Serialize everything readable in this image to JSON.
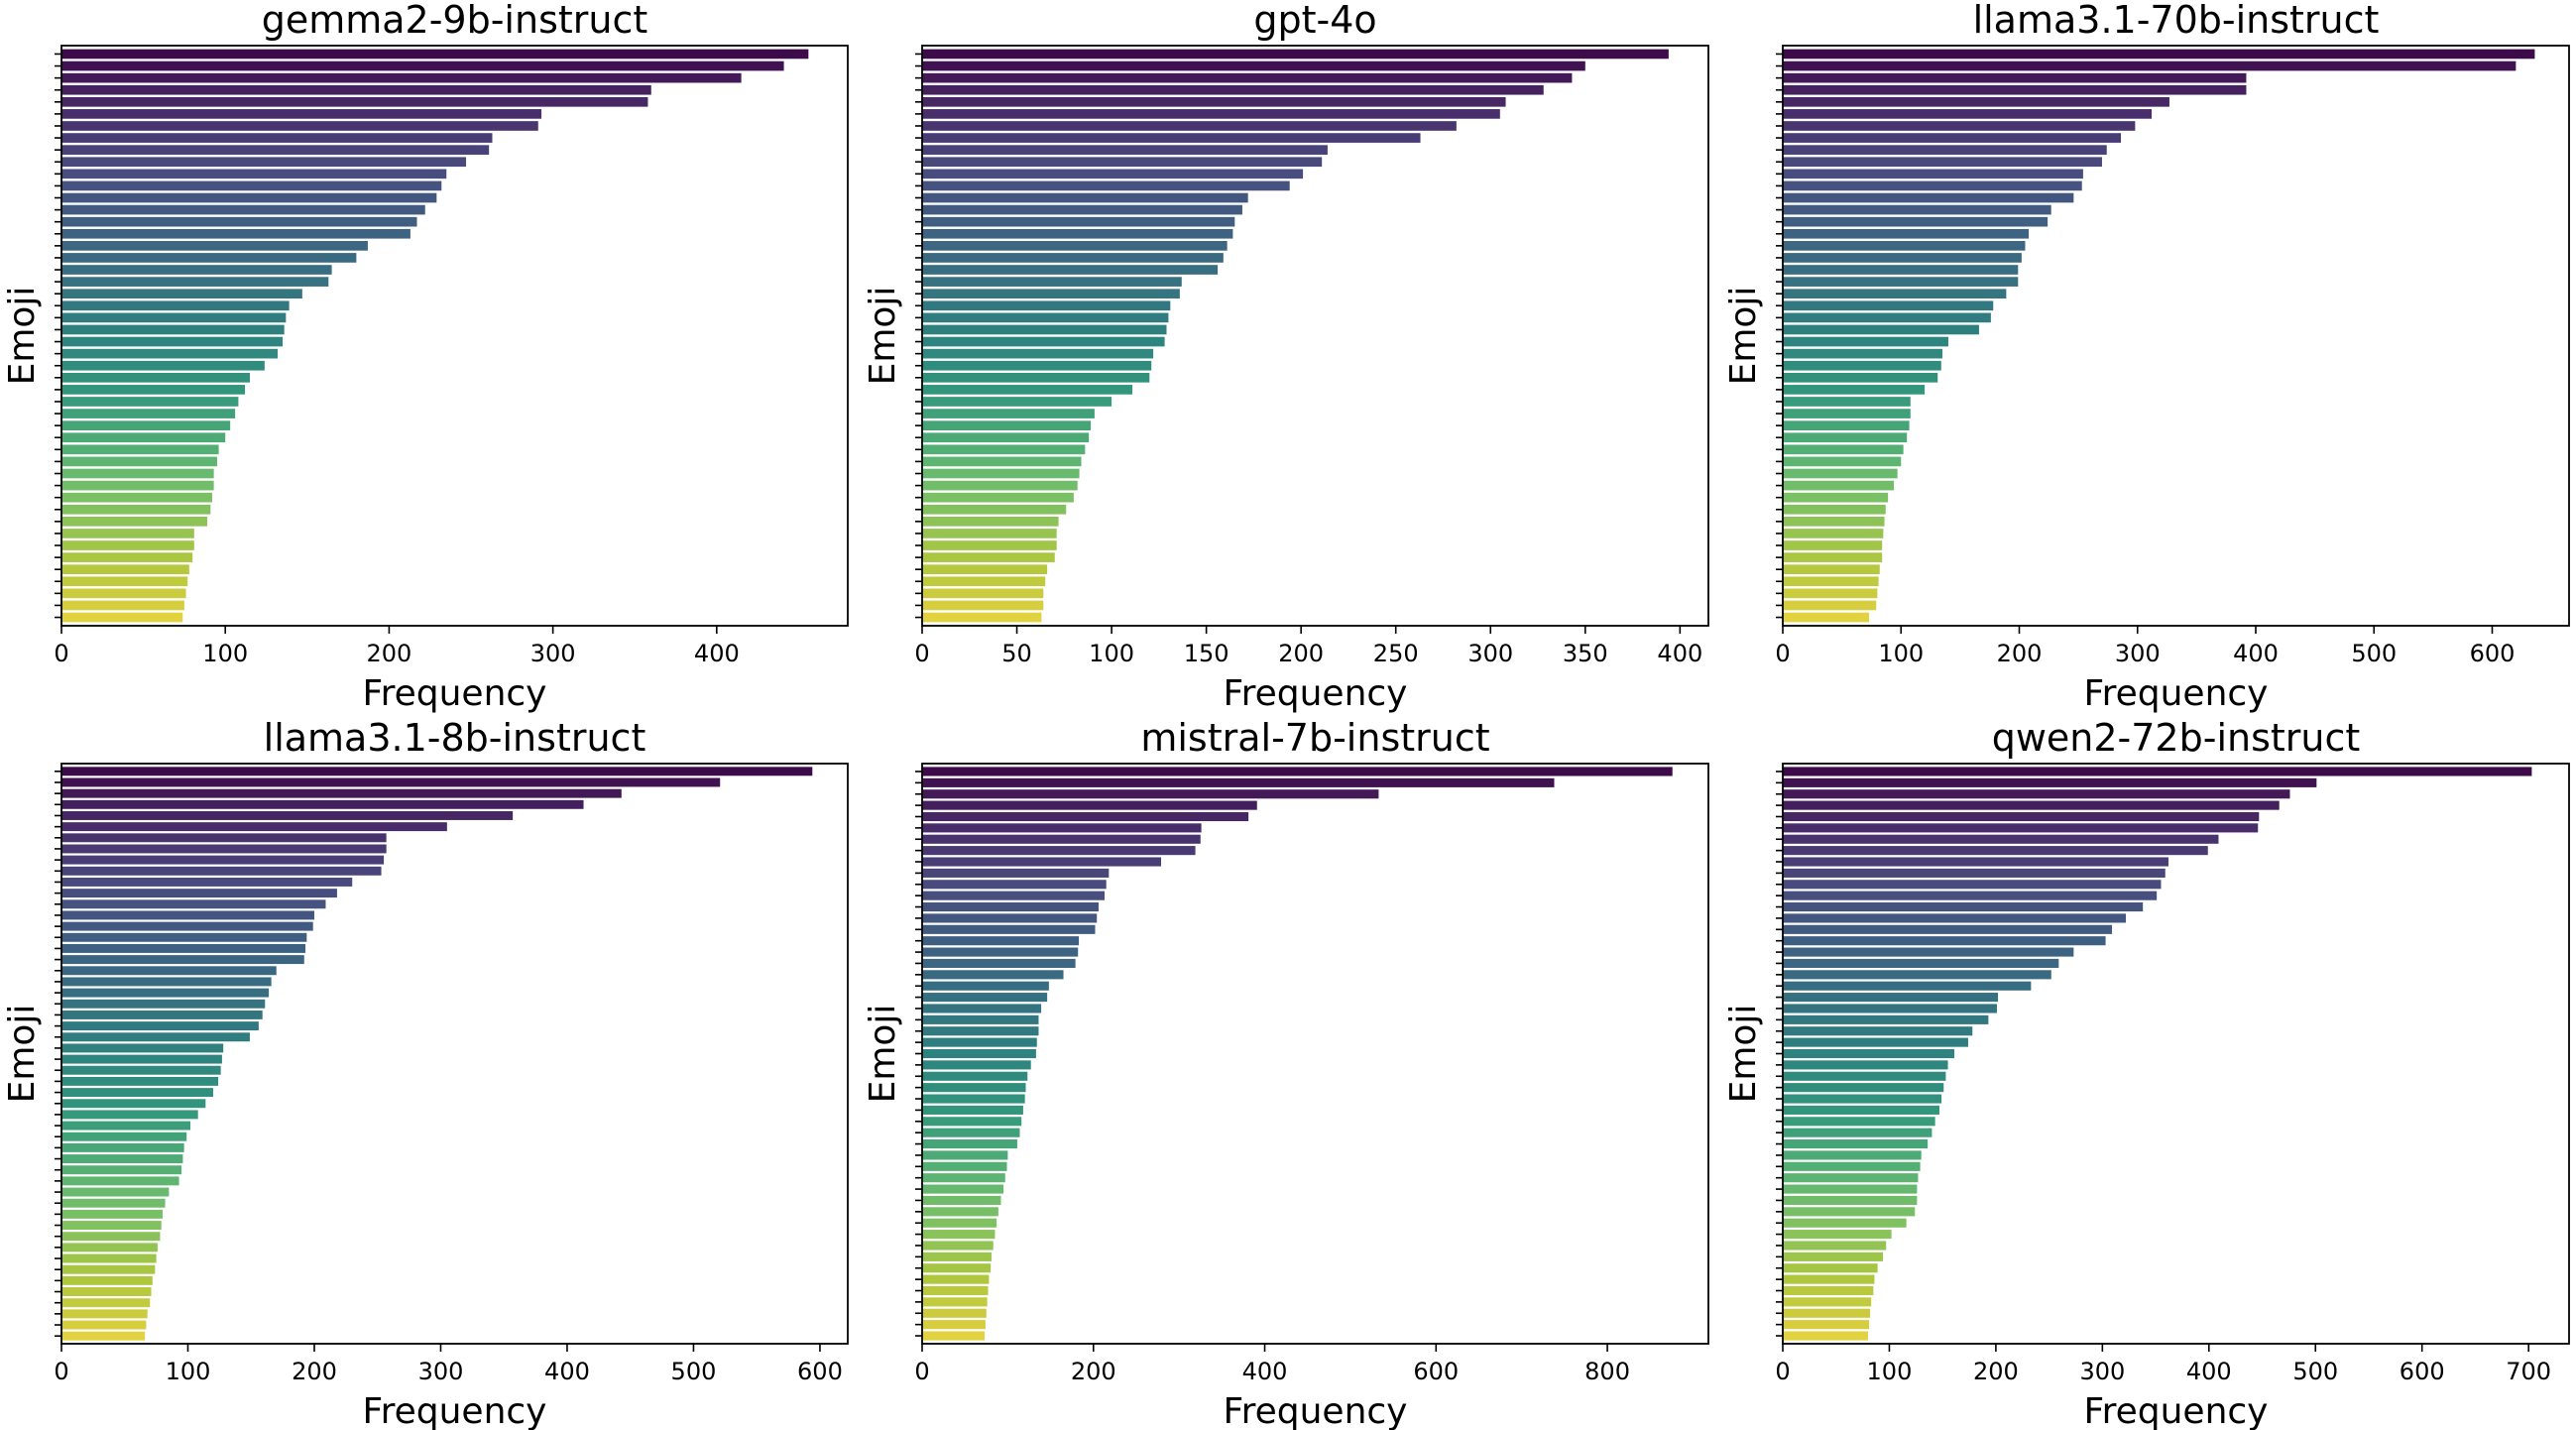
{
  "chart_data": [
    {
      "type": "bar",
      "orientation": "horizontal",
      "title": "gemma2-9b-instruct",
      "xlabel": "Frequency",
      "ylabel": "Emoji",
      "xlim": [
        0,
        480
      ],
      "xticks": [
        0,
        100,
        200,
        300,
        400
      ],
      "values": [
        456,
        441,
        415,
        360,
        358,
        293,
        291,
        263,
        261,
        247,
        235,
        232,
        229,
        222,
        217,
        213,
        187,
        180,
        165,
        163,
        147,
        139,
        137,
        136,
        135,
        132,
        124,
        115,
        112,
        108,
        106,
        103,
        100,
        96,
        95,
        93,
        93,
        92,
        91,
        89,
        81,
        81,
        80,
        78,
        77,
        76,
        75,
        74
      ],
      "colormap": "viridis",
      "grid": false
    },
    {
      "type": "bar",
      "orientation": "horizontal",
      "title": "gpt-4o",
      "xlabel": "Frequency",
      "ylabel": "Emoji",
      "xlim": [
        0,
        415
      ],
      "xticks": [
        0,
        50,
        100,
        150,
        200,
        250,
        300,
        350,
        400
      ],
      "values": [
        394,
        350,
        343,
        328,
        308,
        305,
        282,
        263,
        214,
        211,
        201,
        194,
        172,
        169,
        165,
        164,
        161,
        159,
        156,
        137,
        136,
        131,
        130,
        129,
        128,
        122,
        121,
        120,
        111,
        100,
        91,
        89,
        88,
        86,
        84,
        83,
        82,
        80,
        76,
        72,
        71,
        71,
        70,
        66,
        65,
        64,
        64,
        63
      ],
      "colormap": "viridis",
      "grid": false
    },
    {
      "type": "bar",
      "orientation": "horizontal",
      "title": "llama3.1-70b-instruct",
      "xlabel": "Frequency",
      "ylabel": "Emoji",
      "xlim": [
        0,
        665
      ],
      "xticks": [
        0,
        100,
        200,
        300,
        400,
        500,
        600
      ],
      "values": [
        636,
        620,
        392,
        392,
        327,
        312,
        298,
        286,
        274,
        270,
        254,
        253,
        246,
        227,
        224,
        208,
        205,
        202,
        199,
        199,
        189,
        178,
        176,
        166,
        140,
        135,
        134,
        131,
        120,
        108,
        108,
        107,
        105,
        102,
        100,
        97,
        94,
        89,
        87,
        86,
        85,
        84,
        84,
        82,
        81,
        80,
        79,
        73
      ],
      "colormap": "viridis",
      "grid": false
    },
    {
      "type": "bar",
      "orientation": "horizontal",
      "title": "llama3.1-8b-instruct",
      "xlabel": "Frequency",
      "ylabel": "Emoji",
      "xlim": [
        0,
        622
      ],
      "xticks": [
        0,
        100,
        200,
        300,
        400,
        500,
        600
      ],
      "values": [
        594,
        521,
        443,
        413,
        357,
        305,
        257,
        257,
        255,
        253,
        230,
        218,
        209,
        200,
        199,
        194,
        193,
        192,
        170,
        166,
        164,
        161,
        159,
        156,
        149,
        128,
        127,
        126,
        124,
        120,
        114,
        108,
        102,
        99,
        97,
        96,
        95,
        93,
        85,
        82,
        80,
        79,
        78,
        76,
        75,
        74,
        72,
        71,
        70,
        68,
        67,
        66
      ],
      "colormap": "viridis",
      "grid": false
    },
    {
      "type": "bar",
      "orientation": "horizontal",
      "title": "mistral-7b-instruct",
      "xlabel": "Frequency",
      "ylabel": "Emoji",
      "xlim": [
        0,
        918
      ],
      "xticks": [
        0,
        200,
        400,
        600,
        800
      ],
      "values": [
        876,
        738,
        533,
        391,
        381,
        326,
        325,
        319,
        279,
        218,
        215,
        213,
        206,
        204,
        202,
        183,
        182,
        179,
        165,
        148,
        146,
        139,
        136,
        136,
        134,
        133,
        127,
        123,
        121,
        120,
        118,
        116,
        114,
        111,
        100,
        99,
        97,
        95,
        92,
        89,
        87,
        85,
        83,
        81,
        80,
        78,
        77,
        76,
        75,
        74,
        73
      ],
      "colormap": "viridis",
      "grid": false
    },
    {
      "type": "bar",
      "orientation": "horizontal",
      "title": "qwen2-72b-instruct",
      "xlabel": "Frequency",
      "ylabel": "Emoji",
      "xlim": [
        0,
        738
      ],
      "xticks": [
        0,
        100,
        200,
        300,
        400,
        500,
        600,
        700
      ],
      "values": [
        703,
        501,
        476,
        466,
        447,
        446,
        409,
        399,
        362,
        359,
        355,
        351,
        338,
        322,
        309,
        303,
        273,
        259,
        252,
        233,
        202,
        201,
        193,
        178,
        174,
        161,
        155,
        153,
        151,
        149,
        147,
        143,
        140,
        136,
        130,
        129,
        127,
        126,
        126,
        124,
        116,
        102,
        97,
        94,
        89,
        86,
        85,
        83,
        82,
        81,
        80
      ],
      "colormap": "viridis",
      "grid": false
    }
  ]
}
